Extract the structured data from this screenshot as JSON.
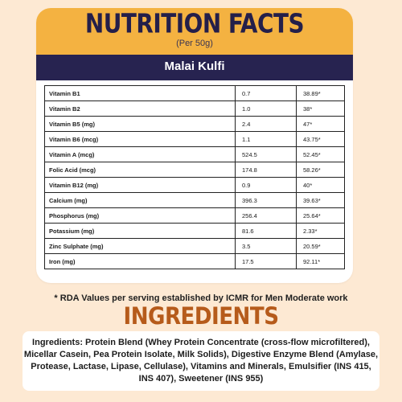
{
  "header": {
    "title": "NUTRITION FACTS",
    "subtitle": "(Per 50g)"
  },
  "product": {
    "name": "Malai Kulfi"
  },
  "nutrients": [
    {
      "name": "Vitamin B1",
      "amount": "0.7",
      "rda": "38.89*"
    },
    {
      "name": "Vitamin B2",
      "amount": "1.0",
      "rda": "38*"
    },
    {
      "name": "Vitamin B5 (mg)",
      "amount": "2.4",
      "rda": "47*"
    },
    {
      "name": "Vitamin B6 (mcg)",
      "amount": "1.1",
      "rda": "43.75*"
    },
    {
      "name": "Vitamin A  (mcg)",
      "amount": "524.5",
      "rda": "52.45*"
    },
    {
      "name": "Folic Acid  (mcg)",
      "amount": "174.8",
      "rda": "58.26*"
    },
    {
      "name": "Vitamin B12 (mg)",
      "amount": "0.9",
      "rda": "40*"
    },
    {
      "name": "Calcium (mg)",
      "amount": "396.3",
      "rda": "39.63*"
    },
    {
      "name": "Phosphorus (mg)",
      "amount": "256.4",
      "rda": "25.64*"
    },
    {
      "name": "Potassium (mg)",
      "amount": "81.6",
      "rda": "2.33*"
    },
    {
      "name": "Zinc Sulphate (mg)",
      "amount": "3.5",
      "rda": "20.59*"
    },
    {
      "name": "Iron (mg)",
      "amount": "17.5",
      "rda": "92.11*"
    }
  ],
  "footnote": "* RDA Values per serving established by ICMR for Men Moderate work",
  "ingredients": {
    "title": "INGREDIENTS",
    "text": "Ingredients: Protein Blend (Whey Protein Concentrate (cross-flow microfiltered), Micellar Casein, Pea Protein Isolate, Milk Solids), Digestive Enzyme Blend (Amylase, Protease, Lactase, Lipase, Cellulase), Vitamins and Minerals, Emulsifier (INS 415, INS 407), Sweetener (INS 955)"
  },
  "colors": {
    "header": "#f4b241",
    "bar": "#272350",
    "background": "#fde9d3",
    "ingredients_title": "#b65b1b"
  }
}
